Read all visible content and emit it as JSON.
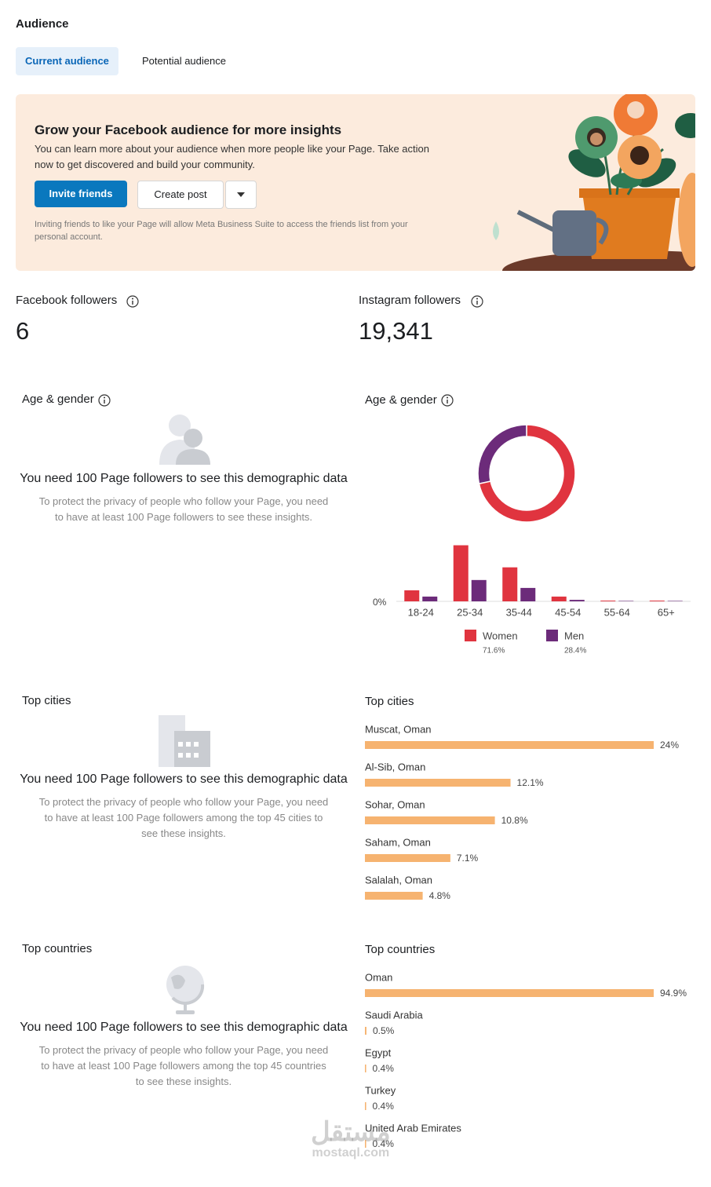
{
  "header": {
    "title": "Audience"
  },
  "tabs": [
    "Current audience",
    "Potential audience"
  ],
  "banner": {
    "title": "Grow your Facebook audience for more insights",
    "text": "You can learn more about your audience when more people like your Page. Take action now to get discovered and build your community.",
    "buttons": [
      "Invite friends",
      "Create post"
    ],
    "note": "Inviting friends to like your Page will allow Meta Business Suite to access the friends list from your personal account."
  },
  "followers": [
    {
      "label": "Facebook followers",
      "value": "6"
    },
    {
      "label": "Instagram followers",
      "value": "19,341"
    }
  ],
  "facebook_panels": [
    {
      "title": "Age & gender",
      "message": "You need 100 Page followers to see this demographic data",
      "detail": "To protect the privacy of people who follow your Page, you need to have at least 100 Page followers to see these insights."
    },
    {
      "title": "Top cities",
      "message": "You need 100 Page followers to see this demographic data",
      "detail": "To protect the privacy of people who follow your Page, you need to have at least 100 Page followers among the top 45 cities to see these insights."
    },
    {
      "title": "Top countries",
      "message": "You need 100 Page followers to see this demographic data",
      "detail": "To protect the privacy of people who follow your Page, you need to have at least 100 Page followers among the top 45 countries to see these insights."
    }
  ],
  "watermark": {
    "text": "مستقل",
    "site": "mostaql.com"
  },
  "chart_data": [
    {
      "type": "donut",
      "title": "Age & gender",
      "values": [
        71.6,
        28.4
      ],
      "value_labels": [
        "71.6%",
        "28.4%"
      ],
      "colors": [
        "#e0343f",
        "#6c2b7a"
      ]
    },
    {
      "type": "bar",
      "categories": [
        "18-24",
        "25-34",
        "35-44",
        "45-54",
        "55-64",
        "65+"
      ],
      "series": [
        {
          "name": "Women",
          "color": "#e0343f",
          "values": [
            7.4,
            37.6,
            22.8,
            3.2,
            0.5,
            0.5
          ]
        },
        {
          "name": "Men",
          "color": "#6c2b7a",
          "values": [
            3.2,
            14.3,
            9,
            1,
            0.3,
            0.3
          ]
        }
      ],
      "ylim": [
        0,
        40
      ],
      "yticks": [
        {
          "value": 0,
          "label": "0%"
        }
      ]
    },
    {
      "type": "hbar",
      "title": "Top cities",
      "categories": [
        "Muscat, Oman",
        "Al-Sib, Oman",
        "Sohar, Oman",
        "Saham, Oman",
        "Salalah, Oman"
      ],
      "values": [
        24,
        12.1,
        10.8,
        7.1,
        4.8
      ],
      "value_labels": [
        "24%",
        "12.1%",
        "10.8%",
        "7.1%",
        "4.8%"
      ],
      "color": "#f6b370",
      "xlim": [
        0,
        24
      ]
    },
    {
      "type": "hbar",
      "title": "Top countries",
      "categories": [
        "Oman",
        "Saudi Arabia",
        "Egypt",
        "Turkey",
        "United Arab Emirates"
      ],
      "values": [
        94.9,
        0.5,
        0.4,
        0.4,
        0.4
      ],
      "value_labels": [
        "94.9%",
        "0.5%",
        "0.4%",
        "0.4%",
        "0.4%"
      ],
      "color": "#f6b370",
      "xlim": [
        0,
        94.9
      ]
    }
  ]
}
